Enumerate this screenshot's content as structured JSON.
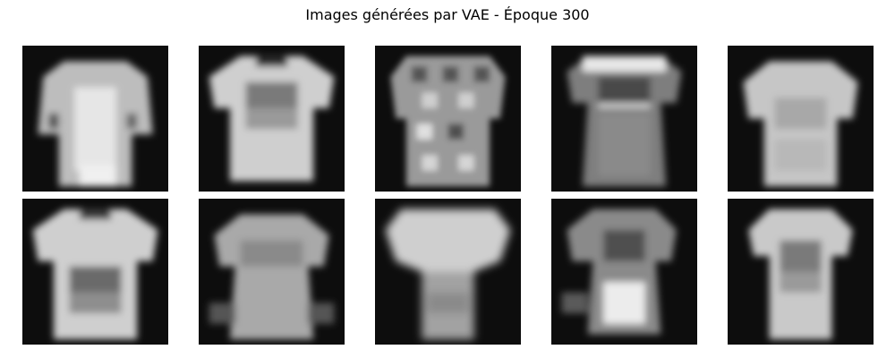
{
  "figure": {
    "title": "Images générées par VAE - Époque 300",
    "background": "#ffffff",
    "colormap": "grayscale"
  },
  "images": [
    {
      "id": "vae-sample-1",
      "subject": "t-shirt silhouette, blurred, wide hem",
      "rotationDeg": 0
    },
    {
      "id": "vae-sample-2",
      "subject": "t-shirt silhouette with darker chest band",
      "rotationDeg": 0
    },
    {
      "id": "vae-sample-3",
      "subject": "patterned t-shirt silhouette, checkered",
      "rotationDeg": 0
    },
    {
      "id": "vae-sample-4",
      "subject": "t-shirt silhouette, dark torso, bright shoulders",
      "rotationDeg": 0
    },
    {
      "id": "vae-sample-5",
      "subject": "t-shirt silhouette, uniform light gray",
      "rotationDeg": 0
    },
    {
      "id": "vae-sample-6",
      "subject": "t-shirt silhouette with dark chest patch",
      "rotationDeg": 0
    },
    {
      "id": "vae-sample-7",
      "subject": "t-shirt silhouette, medium gray body",
      "rotationDeg": 0
    },
    {
      "id": "vae-sample-8",
      "subject": "blurred dress/t-shirt silhouette",
      "rotationDeg": 0
    },
    {
      "id": "vae-sample-9",
      "subject": "t-shirt silhouette with bright lower blob",
      "rotationDeg": 0
    },
    {
      "id": "vae-sample-10",
      "subject": "narrow t-shirt silhouette, dark chest band",
      "rotationDeg": 0
    }
  ]
}
